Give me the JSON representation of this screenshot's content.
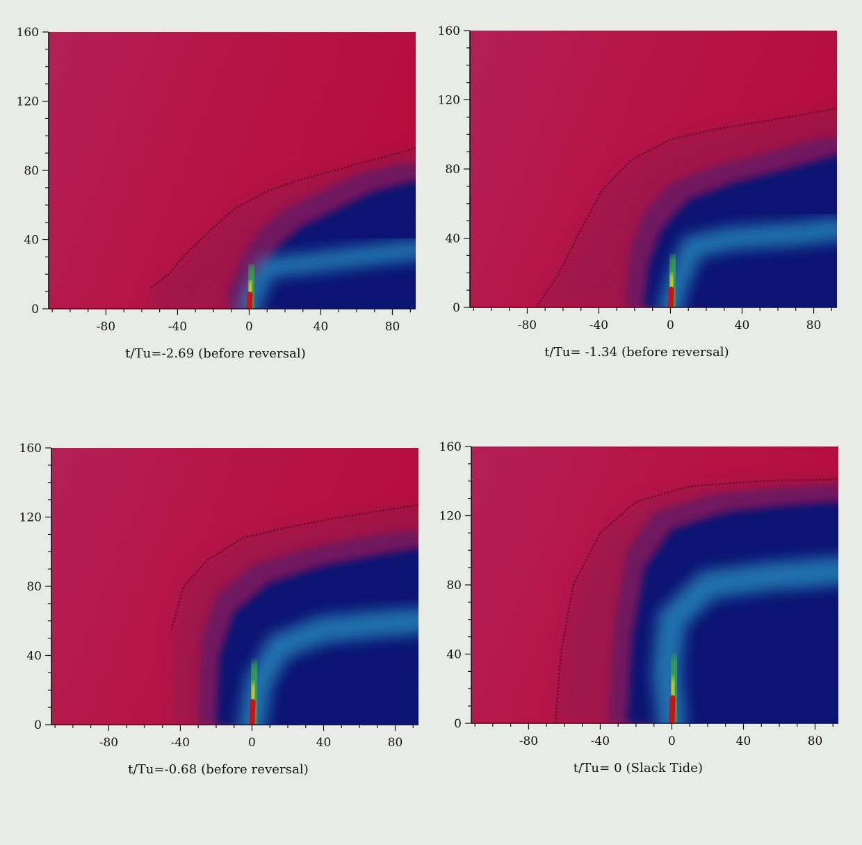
{
  "chart_data": [
    {
      "type": "heatmap",
      "caption": "t/Tu=-2.69 (before reversal)",
      "xlim": [
        -112,
        93
      ],
      "ylim": [
        0,
        160
      ],
      "xticks": [
        -80,
        -40,
        0,
        40,
        80
      ],
      "yticks": [
        0,
        40,
        80,
        120,
        160
      ],
      "ytick_labels": [
        "0",
        "40",
        "80",
        "120",
        "160"
      ],
      "plume": {
        "source_x": 0,
        "outer_contour": [
          [
            -55,
            12
          ],
          [
            -45,
            20
          ],
          [
            -35,
            32
          ],
          [
            -22,
            45
          ],
          [
            -8,
            58
          ],
          [
            10,
            68
          ],
          [
            30,
            75
          ],
          [
            55,
            82
          ],
          [
            80,
            89
          ],
          [
            93,
            93
          ]
        ],
        "blue_boundary": [
          [
            -2,
            0
          ],
          [
            5,
            18
          ],
          [
            15,
            35
          ],
          [
            30,
            48
          ],
          [
            50,
            58
          ],
          [
            70,
            68
          ],
          [
            93,
            74
          ]
        ],
        "cyan_core": [
          [
            0,
            0
          ],
          [
            4,
            12
          ],
          [
            10,
            24
          ],
          [
            30,
            26
          ],
          [
            60,
            30
          ],
          [
            93,
            34
          ]
        ],
        "intensity": 0.45
      }
    },
    {
      "type": "heatmap",
      "caption": "t/Tu= -1.34 (before reversal)",
      "xlim": [
        -112,
        93
      ],
      "ylim": [
        0,
        160
      ],
      "xticks": [
        -80,
        -40,
        0,
        40,
        80
      ],
      "yticks": [
        0,
        40,
        80,
        120,
        160
      ],
      "ytick_labels": [
        "0",
        "40",
        "80",
        "120",
        "160"
      ],
      "plume": {
        "source_x": 0,
        "outer_contour": [
          [
            -75,
            0
          ],
          [
            -62,
            20
          ],
          [
            -50,
            45
          ],
          [
            -38,
            68
          ],
          [
            -22,
            85
          ],
          [
            0,
            97
          ],
          [
            25,
            103
          ],
          [
            55,
            108
          ],
          [
            93,
            115
          ]
        ],
        "blue_boundary": [
          [
            -15,
            0
          ],
          [
            -12,
            25
          ],
          [
            -5,
            45
          ],
          [
            10,
            62
          ],
          [
            35,
            72
          ],
          [
            65,
            80
          ],
          [
            93,
            88
          ]
        ],
        "cyan_core": [
          [
            0,
            0
          ],
          [
            4,
            15
          ],
          [
            12,
            35
          ],
          [
            35,
            40
          ],
          [
            65,
            42
          ],
          [
            93,
            45
          ]
        ],
        "intensity": 0.6
      }
    },
    {
      "type": "heatmap",
      "caption": "t/Tu=-0.68 (before reversal)",
      "xlim": [
        -112,
        93
      ],
      "ylim": [
        0,
        160
      ],
      "xticks": [
        -80,
        -40,
        0,
        40,
        80
      ],
      "yticks": [
        0,
        40,
        80,
        120,
        160
      ],
      "ytick_labels": [
        "0",
        "40",
        "80",
        "120",
        "160"
      ],
      "plume": {
        "source_x": 0,
        "outer_contour": [
          [
            -45,
            55
          ],
          [
            -38,
            80
          ],
          [
            -25,
            95
          ],
          [
            -5,
            108
          ],
          [
            20,
            114
          ],
          [
            50,
            120
          ],
          [
            93,
            127
          ]
        ],
        "blue_boundary": [
          [
            -20,
            0
          ],
          [
            -18,
            40
          ],
          [
            -10,
            65
          ],
          [
            10,
            82
          ],
          [
            40,
            92
          ],
          [
            70,
            98
          ],
          [
            93,
            102
          ]
        ],
        "cyan_core": [
          [
            0,
            0
          ],
          [
            4,
            25
          ],
          [
            15,
            45
          ],
          [
            40,
            55
          ],
          [
            70,
            58
          ],
          [
            93,
            60
          ]
        ],
        "intensity": 0.8
      }
    },
    {
      "type": "heatmap",
      "caption": "t/Tu= 0 (Slack Tide)",
      "xlim": [
        -112,
        93
      ],
      "ylim": [
        0,
        160
      ],
      "xticks": [
        -80,
        -40,
        0,
        40,
        80
      ],
      "yticks": [
        0,
        40,
        80,
        120,
        160
      ],
      "ytick_labels": [
        "0",
        "40",
        "80",
        "120",
        "160"
      ],
      "plume": {
        "source_x": 0,
        "outer_contour": [
          [
            -65,
            0
          ],
          [
            -62,
            40
          ],
          [
            -55,
            80
          ],
          [
            -40,
            110
          ],
          [
            -20,
            128
          ],
          [
            10,
            137
          ],
          [
            50,
            140
          ],
          [
            93,
            141
          ]
        ],
        "blue_boundary": [
          [
            -25,
            0
          ],
          [
            -22,
            50
          ],
          [
            -15,
            90
          ],
          [
            0,
            112
          ],
          [
            30,
            122
          ],
          [
            65,
            126
          ],
          [
            93,
            128
          ]
        ],
        "cyan_core": [
          [
            0,
            0
          ],
          [
            -3,
            30
          ],
          [
            0,
            60
          ],
          [
            20,
            80
          ],
          [
            55,
            85
          ],
          [
            93,
            88
          ]
        ],
        "intensity": 0.9
      }
    }
  ]
}
